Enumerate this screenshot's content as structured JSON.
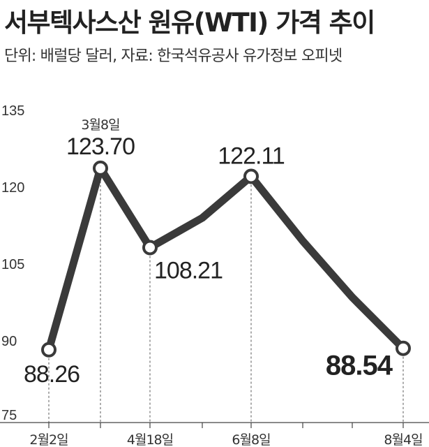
{
  "chart_data": {
    "type": "line",
    "title": "서부텍사스산 원유(WTI) 가격 추이",
    "subtitle": "단위: 배럴당 달러, 자료: 한국석유공사 유가정보 오피넷",
    "ylim": [
      75,
      135
    ],
    "yticks": [
      "135",
      "120",
      "105",
      "90",
      "75"
    ],
    "xticks": [
      {
        "x": 0,
        "label": "2월2일"
      },
      {
        "x": 2,
        "label": "4월18일"
      },
      {
        "x": 4,
        "label": "6월8일"
      },
      {
        "x": 7,
        "label": "8월4일"
      }
    ],
    "series": [
      {
        "values": [
          {
            "x": 0,
            "y": 88.26
          },
          {
            "x": 1,
            "y": 123.7
          },
          {
            "x": 2,
            "y": 108.21
          },
          {
            "x": 3,
            "y": 114.0
          },
          {
            "x": 4,
            "y": 122.11
          },
          {
            "x": 5,
            "y": 109.5
          },
          {
            "x": 6,
            "y": 98.5
          },
          {
            "x": 7,
            "y": 88.54
          }
        ]
      }
    ],
    "annotations": [
      {
        "x": 0,
        "y": 88.26,
        "value": "88.26",
        "marker": true
      },
      {
        "x": 1,
        "y": 123.7,
        "value": "123.70",
        "date": "3월8일",
        "marker": true
      },
      {
        "x": 2,
        "y": 108.21,
        "value": "108.21",
        "marker": true
      },
      {
        "x": 4,
        "y": 122.11,
        "value": "122.11",
        "marker": true
      },
      {
        "x": 7,
        "y": 88.54,
        "value": "88.54",
        "marker": true,
        "emphasis": true
      }
    ],
    "grid": false
  }
}
